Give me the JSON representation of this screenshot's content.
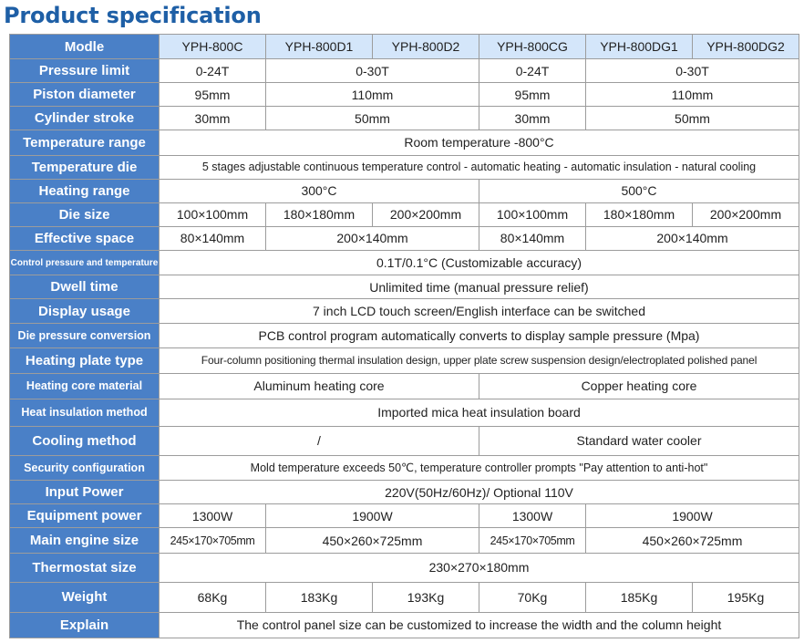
{
  "title": "Product specification",
  "header": {
    "label": "Modle",
    "models": [
      "YPH-800C",
      "YPH-800D1",
      "YPH-800D2",
      "YPH-800CG",
      "YPH-800DG1",
      "YPH-800DG2"
    ]
  },
  "rows": {
    "pressure_limit": {
      "label": "Pressure limit",
      "v1": "0-24T",
      "v2": "0-30T",
      "v3": "0-24T",
      "v4": "0-30T"
    },
    "piston_diameter": {
      "label": "Piston diameter",
      "v1": "95mm",
      "v2": "110mm",
      "v3": "95mm",
      "v4": "110mm"
    },
    "cylinder_stroke": {
      "label": "Cylinder stroke",
      "v1": "30mm",
      "v2": "50mm",
      "v3": "30mm",
      "v4": "50mm"
    },
    "temperature_range": {
      "label": "Temperature range",
      "value": "Room temperature -800°C"
    },
    "temperature_die": {
      "label": "Temperature die",
      "value": "5 stages adjustable continuous temperature control - automatic heating - automatic insulation - natural cooling"
    },
    "heating_range": {
      "label": "Heating range",
      "v1": "300°C",
      "v2": "500°C"
    },
    "die_size": {
      "label": "Die size",
      "values": [
        "100×100mm",
        "180×180mm",
        "200×200mm",
        "100×100mm",
        "180×180mm",
        "200×200mm"
      ]
    },
    "effective_space": {
      "label": "Effective space",
      "v1": "80×140mm",
      "v2": "200×140mm",
      "v3": "80×140mm",
      "v4": "200×140mm"
    },
    "control_pressure": {
      "label": "Control pressure and temperature",
      "value": "0.1T/0.1°C (Customizable accuracy)"
    },
    "dwell_time": {
      "label": "Dwell time",
      "value": "Unlimited time (manual pressure relief)"
    },
    "display_usage": {
      "label": "Display usage",
      "value": "7 inch LCD touch screen/English interface can be switched"
    },
    "die_pressure_conversion": {
      "label": "Die pressure conversion",
      "value": "PCB control program automatically converts to display sample pressure (Mpa)"
    },
    "heating_plate_type": {
      "label": "Heating plate type",
      "value": "Four-column positioning thermal insulation design, upper plate screw suspension design/electroplated polished panel"
    },
    "heating_core_material": {
      "label": "Heating core material",
      "v1": "Aluminum heating core",
      "v2": "Copper heating core"
    },
    "heat_insulation_method": {
      "label": "Heat insulation method",
      "value": "Imported mica heat insulation board"
    },
    "cooling_method": {
      "label": "Cooling method",
      "v1": "/",
      "v2": "Standard water cooler"
    },
    "security_configuration": {
      "label": "Security configuration",
      "value": "Mold temperature exceeds 50℃, temperature controller prompts \"Pay attention to anti-hot\""
    },
    "input_power": {
      "label": "Input Power",
      "value": "220V(50Hz/60Hz)/ Optional 110V"
    },
    "equipment_power": {
      "label": "Equipment power",
      "v1": "1300W",
      "v2": "1900W",
      "v3": "1300W",
      "v4": "1900W"
    },
    "main_engine_size": {
      "label": "Main engine size",
      "v1": "245×170×705mm",
      "v2": "450×260×725mm",
      "v3": "245×170×705mm",
      "v4": "450×260×725mm"
    },
    "thermostat_size": {
      "label": "Thermostat size",
      "value": "230×270×180mm"
    },
    "weight": {
      "label": "Weight",
      "values": [
        "68Kg",
        "183Kg",
        "193Kg",
        "70Kg",
        "185Kg",
        "195Kg"
      ]
    },
    "explain": {
      "label": "Explain",
      "value": "The control panel size can be customized to increase the width and the column height"
    }
  }
}
